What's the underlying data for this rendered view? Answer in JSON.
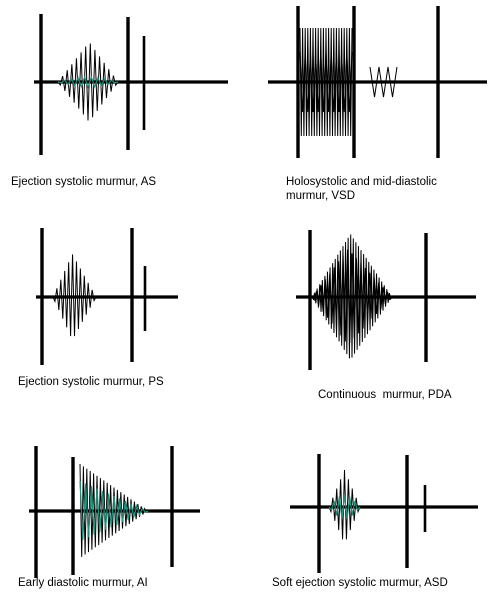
{
  "colors": {
    "stroke": "#000000",
    "accent": "#1f8f7a",
    "background": "#ffffff"
  },
  "panels": [
    {
      "id": "as",
      "caption": "Ejection systolic murmur, AS"
    },
    {
      "id": "vsd",
      "caption": "Holosystolic and mid-diastolic\nmurmur, VSD"
    },
    {
      "id": "ps",
      "caption": "Ejection systolic murmur, PS"
    },
    {
      "id": "pda",
      "caption": "Continuous  murmur, PDA"
    },
    {
      "id": "ai",
      "caption": "Early diastolic murmur, AI"
    },
    {
      "id": "asd",
      "caption": "Soft ejection systolic murmur, ASD"
    }
  ]
}
